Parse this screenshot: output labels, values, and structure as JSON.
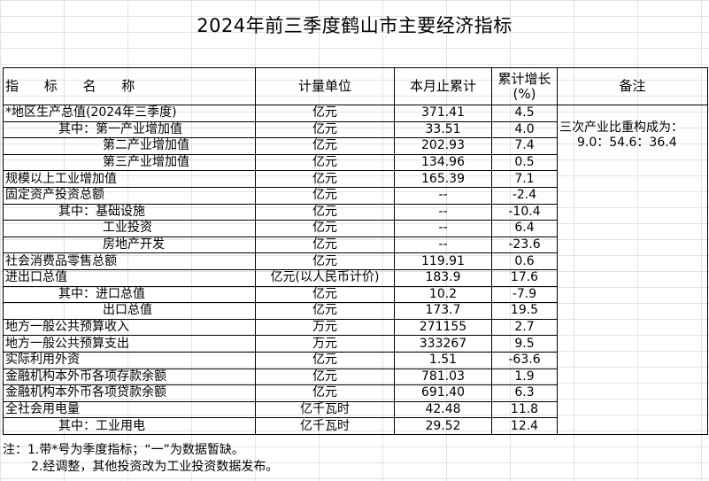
{
  "title": "2024年前三季度鹤山市主要经济指标",
  "headers": {
    "name": "指 标 名 称",
    "unit": "计量单位",
    "value": "本月止累计",
    "growth_line1": "累计增长",
    "growth_line2": "(%)",
    "note": "备注"
  },
  "rows": [
    {
      "name": "*地区生产总值(2024年三季度)",
      "unit": "亿元",
      "value": "371.41",
      "growth": "4.5",
      "indent": 0
    },
    {
      "name": "其中：第一产业增加值",
      "unit": "亿元",
      "value": "33.51",
      "growth": "4.0",
      "indent": 1
    },
    {
      "name": "第二产业增加值",
      "unit": "亿元",
      "value": "202.93",
      "growth": "7.4",
      "indent": 2
    },
    {
      "name": "第三产业增加值",
      "unit": "亿元",
      "value": "134.96",
      "growth": "0.5",
      "indent": 2
    },
    {
      "name": "规模以上工业增加值",
      "unit": "亿元",
      "value": "165.39",
      "growth": "7.1",
      "indent": 0
    },
    {
      "name": "固定资产投资总额",
      "unit": "亿元",
      "value": "--",
      "growth": "-2.4",
      "indent": 0
    },
    {
      "name": "其中：基础设施",
      "unit": "亿元",
      "value": "--",
      "growth": "-10.4",
      "indent": 1
    },
    {
      "name": "工业投资",
      "unit": "亿元",
      "value": "--",
      "growth": "6.4",
      "indent": 2
    },
    {
      "name": "房地产开发",
      "unit": "亿元",
      "value": "--",
      "growth": "-23.6",
      "indent": 2
    },
    {
      "name": "社会消费品零售总额",
      "unit": "亿元",
      "value": "119.91",
      "growth": "0.6",
      "indent": 0
    },
    {
      "name": "进出口总值",
      "unit": "亿元(以人民币计价)",
      "value": "183.9",
      "growth": "17.6",
      "indent": 0
    },
    {
      "name": "其中：进口总值",
      "unit": "亿元",
      "value": "10.2",
      "growth": "-7.9",
      "indent": 1
    },
    {
      "name": "出口总值",
      "unit": "亿元",
      "value": "173.7",
      "growth": "19.5",
      "indent": 2
    },
    {
      "name": "地方一般公共预算收入",
      "unit": "万元",
      "value": "271155",
      "growth": "2.7",
      "indent": 0
    },
    {
      "name": "地方一般公共预算支出",
      "unit": "万元",
      "value": "333267",
      "growth": "9.5",
      "indent": 0
    },
    {
      "name": "实际利用外资",
      "unit": "亿元",
      "value": "1.51",
      "growth": "-63.6",
      "indent": 0
    },
    {
      "name": "金融机构本外币各项存款余额",
      "unit": "亿元",
      "value": "781.03",
      "growth": "1.9",
      "indent": 0
    },
    {
      "name": "金融机构本外币各项贷款余额",
      "unit": "亿元",
      "value": "691.40",
      "growth": "6.3",
      "indent": 0
    },
    {
      "name": "全社会用电量",
      "unit": "亿千瓦时",
      "value": "42.48",
      "growth": "11.8",
      "indent": 0
    },
    {
      "name": "其中：工业用电",
      "unit": "亿千瓦时",
      "value": "29.52",
      "growth": "12.4",
      "indent": 1
    }
  ],
  "note": {
    "line1": "三次产业比重构成为：",
    "line2": "9.0：54.6：36.4"
  },
  "footnotes": {
    "line1": "注：1.带*号为季度指标；“一”为数据暂缺。",
    "line2": "2.经调整，其他投资改为工业投资数据发布。"
  }
}
